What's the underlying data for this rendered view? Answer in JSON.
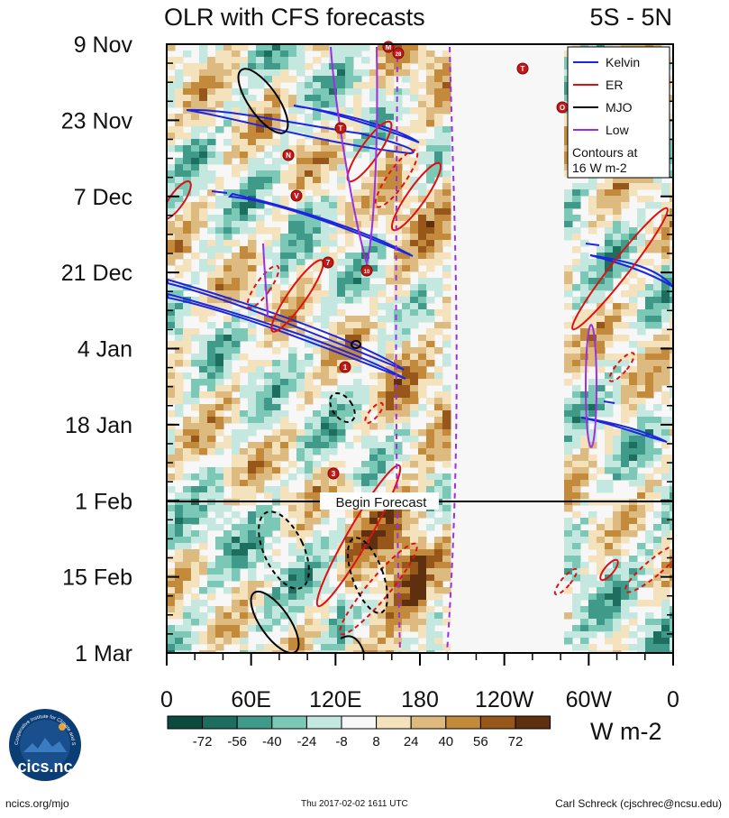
{
  "chart_data": {
    "type": "heatmap",
    "title": "OLR with CFS forecasts",
    "region": "5S - 5N",
    "xlabel": "",
    "ylabel": "",
    "x_tick_labels": [
      "0",
      "60E",
      "120E",
      "180",
      "120W",
      "60W",
      "0"
    ],
    "y_tick_labels": [
      "9 Nov",
      "23 Nov",
      "7 Dec",
      "21 Dec",
      "4 Jan",
      "18 Jan",
      "1 Feb",
      "15 Feb",
      "1 Mar"
    ],
    "forecast_marker": "Begin Forecast",
    "colorbar": {
      "labels": [
        "-72",
        "-56",
        "-40",
        "-24",
        "-8",
        "8",
        "24",
        "40",
        "56",
        "72"
      ],
      "colors": [
        "#0c4a3e",
        "#1e6e5f",
        "#3f9a8a",
        "#7cc8b6",
        "#c4e8df",
        "#f7f7f7",
        "#f3e2bc",
        "#ddbb80",
        "#c48a3c",
        "#97571a",
        "#5e3010"
      ],
      "units": "W m-2"
    },
    "legend": {
      "entries": [
        {
          "name": "Kelvin",
          "color": "#1c25e0"
        },
        {
          "name": "ER",
          "color": "#e01010"
        },
        {
          "name": "MJO",
          "color": "#000000"
        },
        {
          "name": "Low",
          "color": "#9b30e0"
        }
      ],
      "note_line1": "Contours at",
      "note_line2": "16 W m-2",
      "position": "top-right"
    },
    "storm_labels": [
      "T",
      "M",
      "28",
      "O",
      "T",
      "N",
      "V",
      "7",
      "10",
      "1",
      "3"
    ]
  },
  "footer": {
    "left": "ncics.org/mjo",
    "center": "Thu 2017-02-02 1611 UTC",
    "right": "Carl Schreck (cjschrec@ncsu.edu)"
  },
  "logo": {
    "ring_text": "Cooperative Institute for Climate and Satellites",
    "name": "cics.nc"
  }
}
